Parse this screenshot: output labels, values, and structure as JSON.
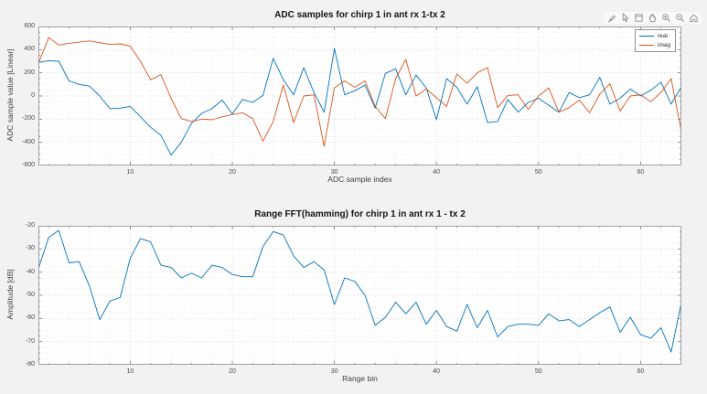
{
  "figure": {
    "background": "#f2f2f2",
    "axes_background": "#ffffff",
    "axes_border_color": "#a0a0a0",
    "grid_color": "#d4d4d4",
    "minor_grid_color": "#e9e9e9",
    "tick_color": "#737373",
    "toolbar": {
      "icons": [
        "brush",
        "datatip",
        "export",
        "pan",
        "zoom-in",
        "zoom-out",
        "home"
      ]
    }
  },
  "chart_data": [
    {
      "type": "line",
      "title": "ADC samples for chirp 1 in ant rx 1-tx 2",
      "xlabel": "ADC sample index",
      "ylabel": "ADC sample value [Linear]",
      "x": {
        "start": 1,
        "step": 1,
        "count": 64
      },
      "xlim": [
        1,
        64
      ],
      "ylim": [
        -600,
        600
      ],
      "xticks": [
        10,
        20,
        30,
        40,
        50,
        60
      ],
      "yticks": [
        -600,
        -400,
        -200,
        0,
        200,
        400,
        600
      ],
      "grid": true,
      "minor_grid": true,
      "legend": {
        "position": "northeast",
        "entries": [
          "real",
          "imag"
        ]
      },
      "series": [
        {
          "name": "real",
          "color": "#0072BD",
          "values": [
            290,
            305,
            300,
            130,
            100,
            85,
            0,
            -110,
            -105,
            -90,
            -180,
            -270,
            -340,
            -510,
            -400,
            -235,
            -150,
            -110,
            -35,
            -155,
            -30,
            -55,
            5,
            325,
            140,
            10,
            245,
            30,
            -140,
            410,
            10,
            45,
            95,
            -105,
            195,
            235,
            10,
            180,
            70,
            -205,
            150,
            75,
            -70,
            80,
            -230,
            -220,
            -30,
            -140,
            -55,
            -20,
            -80,
            -140,
            30,
            -15,
            10,
            160,
            -70,
            -20,
            60,
            0,
            50,
            120,
            -70,
            80
          ]
        },
        {
          "name": "imag",
          "color": "#D95319",
          "values": [
            280,
            505,
            440,
            455,
            465,
            475,
            460,
            445,
            450,
            430,
            300,
            140,
            185,
            -20,
            -195,
            -220,
            -200,
            -205,
            -180,
            -160,
            -145,
            -195,
            -390,
            -220,
            95,
            -230,
            0,
            10,
            -435,
            70,
            130,
            75,
            130,
            -90,
            -195,
            150,
            315,
            0,
            60,
            -15,
            -90,
            190,
            110,
            200,
            245,
            -100,
            5,
            10,
            -115,
            0,
            70,
            -140,
            -100,
            -35,
            -145,
            15,
            105,
            -130,
            0,
            10,
            -50,
            30,
            150,
            -310
          ]
        }
      ]
    },
    {
      "type": "line",
      "title": "Range FFT(hamming) for chirp 1 in ant rx 1 - tx 2",
      "xlabel": "Range bin",
      "ylabel": "Amplitude [dB]",
      "x": {
        "start": 1,
        "step": 1,
        "count": 64
      },
      "xlim": [
        1,
        64
      ],
      "ylim": [
        -80,
        -20
      ],
      "xticks": [
        10,
        20,
        30,
        40,
        50,
        60
      ],
      "yticks": [
        -80,
        -70,
        -60,
        -50,
        -40,
        -30,
        -20
      ],
      "grid": true,
      "minor_grid": true,
      "series": [
        {
          "name": "fft",
          "color": "#0072BD",
          "values": [
            -38.5,
            -25,
            -22,
            -36,
            -35.5,
            -46,
            -60.5,
            -52.5,
            -51,
            -34,
            -25.5,
            -27,
            -37,
            -38,
            -42.5,
            -40.5,
            -42.5,
            -37,
            -38,
            -41,
            -42,
            -42,
            -29,
            -22.5,
            -24,
            -33,
            -38,
            -35.5,
            -39,
            -54,
            -42.5,
            -44,
            -50,
            -63,
            -59.5,
            -53,
            -58,
            -53,
            -62.5,
            -56.5,
            -63.5,
            -65.5,
            -54,
            -64,
            -56.5,
            -68,
            -63.5,
            -62.5,
            -62.5,
            -63,
            -58,
            -61,
            -60.5,
            -63.5,
            -60.5,
            -57.5,
            -55,
            -66,
            -59.5,
            -67,
            -68.5,
            -64,
            -74.5,
            -53
          ]
        }
      ]
    }
  ]
}
